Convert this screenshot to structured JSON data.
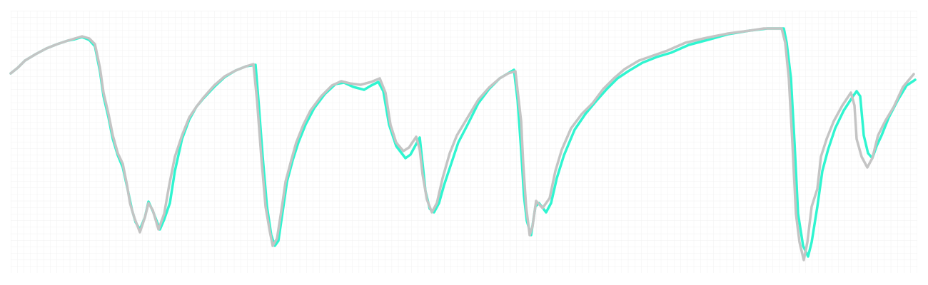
{
  "chart_data": {
    "type": "line",
    "grid": true,
    "xlim": [
      15,
      1285
    ],
    "ylim": [
      17,
      385
    ],
    "series": [
      {
        "color": "#2ff5d0",
        "x": [
          15,
          25,
          35,
          50,
          65,
          80,
          95,
          105,
          115,
          125,
          133,
          140,
          145,
          152,
          158,
          165,
          172,
          178,
          185,
          190,
          196,
          203,
          208,
          214,
          224,
          230,
          238,
          245,
          255,
          265,
          275,
          285,
          300,
          315,
          330,
          345,
          358,
          362,
          368,
          374,
          380,
          385,
          390,
          397,
          402,
          410,
          418,
          428,
          440,
          455,
          470,
          482,
          495,
          510,
          520,
          530,
          537,
          545,
          555,
          568,
          575,
          588,
          592,
          596,
          602,
          608,
          615,
          622,
          632,
          642,
          655,
          670,
          685,
          700,
          720,
          725,
          730,
          734,
          738,
          744,
          750,
          755,
          765,
          772,
          780,
          790,
          805,
          820,
          835,
          850,
          865,
          880,
          900,
          920,
          940,
          965,
          995,
          1020,
          1050,
          1075,
          1098,
          1102,
          1108,
          1113,
          1118,
          1125,
          1132,
          1137,
          1145,
          1152,
          1160,
          1170,
          1182,
          1195,
          1200,
          1205,
          1210,
          1216,
          1222,
          1228,
          1235,
          1245,
          1258,
          1270,
          1282
        ],
        "values": [
          297,
          305,
          315,
          324,
          332,
          338,
          343,
          345,
          348,
          344,
          335,
          300,
          265,
          235,
          205,
          182,
          165,
          138,
          105,
          88,
          78,
          95,
          117,
          104,
          78,
          92,
          115,
          160,
          205,
          232,
          250,
          262,
          278,
          292,
          301,
          307,
          309,
          260,
          180,
          110,
          70,
          55,
          62,
          110,
          145,
          175,
          200,
          225,
          248,
          268,
          282,
          284,
          278,
          274,
          280,
          285,
          272,
          225,
          195,
          178,
          183,
          207,
          170,
          132,
          107,
          102,
          115,
          140,
          170,
          200,
          225,
          255,
          275,
          290,
          302,
          260,
          190,
          125,
          90,
          70,
          110,
          115,
          102,
          115,
          150,
          182,
          218,
          240,
          258,
          275,
          290,
          300,
          312,
          320,
          326,
          337,
          345,
          352,
          357,
          360,
          360,
          340,
          290,
          200,
          100,
          55,
          40,
          60,
          110,
          160,
          190,
          220,
          245,
          265,
          272,
          265,
          210,
          185,
          178,
          195,
          210,
          235,
          260,
          280,
          288
        ]
      },
      {
        "color": "#c4c4c4",
        "x": [
          15,
          25,
          35,
          50,
          65,
          80,
          95,
          105,
          115,
          125,
          133,
          140,
          145,
          152,
          158,
          165,
          172,
          178,
          182,
          188,
          196,
          203,
          208,
          214,
          222,
          230,
          237,
          245,
          255,
          265,
          275,
          285,
          300,
          315,
          330,
          345,
          355,
          360,
          366,
          372,
          378,
          382,
          388,
          395,
          400,
          408,
          415,
          425,
          435,
          450,
          465,
          478,
          490,
          505,
          520,
          532,
          540,
          547,
          555,
          565,
          573,
          583,
          588,
          592,
          598,
          605,
          612,
          620,
          630,
          640,
          655,
          670,
          685,
          700,
          712,
          722,
          730,
          733,
          737,
          742,
          746,
          751,
          760,
          770,
          778,
          787,
          800,
          815,
          830,
          845,
          860,
          875,
          895,
          915,
          935,
          960,
          990,
          1020,
          1050,
          1070,
          1095,
          1100,
          1105,
          1110,
          1115,
          1120,
          1126,
          1131,
          1137,
          1145,
          1150,
          1158,
          1168,
          1180,
          1192,
          1197,
          1200,
          1207,
          1215,
          1222,
          1230,
          1240,
          1252,
          1265,
          1280
        ],
        "values": [
          297,
          305,
          315,
          324,
          332,
          338,
          343,
          346,
          349,
          346,
          338,
          305,
          270,
          240,
          210,
          185,
          170,
          140,
          115,
          95,
          74,
          95,
          115,
          105,
          78,
          100,
          140,
          180,
          210,
          235,
          250,
          263,
          280,
          293,
          301,
          307,
          310,
          260,
          180,
          110,
          75,
          55,
          65,
          110,
          145,
          175,
          200,
          225,
          245,
          265,
          280,
          286,
          283,
          281,
          285,
          290,
          270,
          225,
          200,
          188,
          193,
          208,
          190,
          155,
          120,
          102,
          115,
          150,
          185,
          210,
          235,
          260,
          277,
          290,
          297,
          300,
          230,
          170,
          110,
          70,
          82,
          118,
          108,
          122,
          160,
          190,
          220,
          240,
          255,
          275,
          290,
          303,
          315,
          322,
          329,
          340,
          347,
          353,
          357,
          360,
          360,
          340,
          290,
          200,
          100,
          60,
          35,
          60,
          110,
          135,
          180,
          205,
          230,
          252,
          270,
          252,
          205,
          180,
          165,
          178,
          210,
          230,
          250,
          278,
          296
        ]
      }
    ]
  }
}
